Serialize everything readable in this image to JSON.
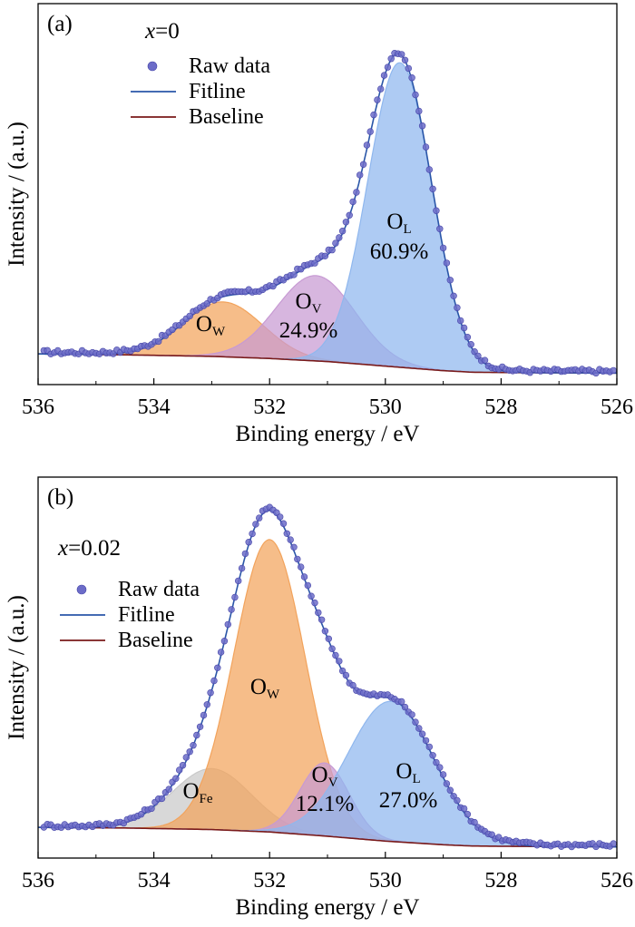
{
  "colors": {
    "raw": "#6c6cc8",
    "raw_edge": "#4545a8",
    "fit": "#2a56a8",
    "baseline": "#7a1a1a",
    "O_L": "#8fb7ee",
    "O_V": "#c79ad3",
    "O_W": "#f2a35c",
    "O_Fe": "#c9c9c9"
  },
  "chart_data": [
    {
      "type": "area",
      "panel_label": "(a)",
      "composition": {
        "prefix": "x",
        "value": "=0"
      },
      "xlabel": "Binding energy / eV",
      "ylabel": "Intensity / (a.u.)",
      "xlim": [
        536,
        526
      ],
      "x_reversed": true,
      "x_ticks": [
        "536",
        "534",
        "532",
        "530",
        "528",
        "526"
      ],
      "y_ticks_shown": false,
      "ylim": [
        0,
        1.12
      ],
      "legend": {
        "placement": "top-left",
        "entries": [
          {
            "label": "Raw data",
            "kind": "marker"
          },
          {
            "label": "Fitline",
            "kind": "fit"
          },
          {
            "label": "Baseline",
            "kind": "baseline"
          }
        ]
      },
      "baseline": {
        "x": [
          536,
          534.5,
          533,
          532,
          531,
          530,
          529,
          528.5,
          528,
          527,
          526
        ],
        "y": [
          0.065,
          0.062,
          0.057,
          0.05,
          0.04,
          0.025,
          0.01,
          0.005,
          0.004,
          0.003,
          0.002
        ]
      },
      "peaks": [
        {
          "id": "O_W",
          "base": "O",
          "sub": "W",
          "percent": "",
          "center": 532.8,
          "fwhm": 1.6,
          "height": 0.18,
          "color_key": "O_W"
        },
        {
          "id": "O_V",
          "base": "O",
          "sub": "V",
          "percent": "24.9%",
          "center": 531.2,
          "fwhm": 1.6,
          "height": 0.28,
          "color_key": "O_V"
        },
        {
          "id": "O_L",
          "base": "O",
          "sub": "L",
          "percent": "60.9%",
          "center": 529.75,
          "fwhm": 1.3,
          "height": 1.0,
          "color_key": "O_L"
        }
      ],
      "raw_spacing_eV": 0.06
    },
    {
      "type": "area",
      "panel_label": "(b)",
      "composition": {
        "prefix": "x",
        "value": "=0.02"
      },
      "xlabel": "Binding energy / eV",
      "ylabel": "Intensity / (a.u.)",
      "xlim": [
        536,
        526
      ],
      "x_reversed": true,
      "x_ticks": [
        "536",
        "534",
        "532",
        "530",
        "528",
        "526"
      ],
      "y_ticks_shown": false,
      "ylim": [
        0,
        1.12
      ],
      "legend": {
        "placement": "top-left",
        "entries": [
          {
            "label": "Raw data",
            "kind": "marker"
          },
          {
            "label": "Fitline",
            "kind": "fit"
          },
          {
            "label": "Baseline",
            "kind": "baseline"
          }
        ]
      },
      "baseline": {
        "x": [
          536,
          534.5,
          533,
          532,
          531,
          530,
          529,
          528.5,
          528,
          527,
          526
        ],
        "y": [
          0.065,
          0.063,
          0.058,
          0.05,
          0.036,
          0.02,
          0.008,
          0.004,
          0.003,
          0.002,
          0.001
        ]
      },
      "peaks": [
        {
          "id": "O_Fe",
          "base": "O",
          "sub": "Fe",
          "percent": "",
          "center": 533.0,
          "fwhm": 1.6,
          "height": 0.2,
          "color_key": "O_Fe"
        },
        {
          "id": "O_W",
          "base": "O",
          "sub": "W",
          "percent": "",
          "center": 532.0,
          "fwhm": 1.45,
          "height": 0.96,
          "color_key": "O_W"
        },
        {
          "id": "O_V",
          "base": "O",
          "sub": "V",
          "percent": "12.1%",
          "center": 531.05,
          "fwhm": 1.0,
          "height": 0.24,
          "color_key": "O_V"
        },
        {
          "id": "O_L",
          "base": "O",
          "sub": "L",
          "percent": "27.0%",
          "center": 529.9,
          "fwhm": 1.75,
          "height": 0.46,
          "color_key": "O_L"
        }
      ],
      "raw_spacing_eV": 0.06
    }
  ]
}
